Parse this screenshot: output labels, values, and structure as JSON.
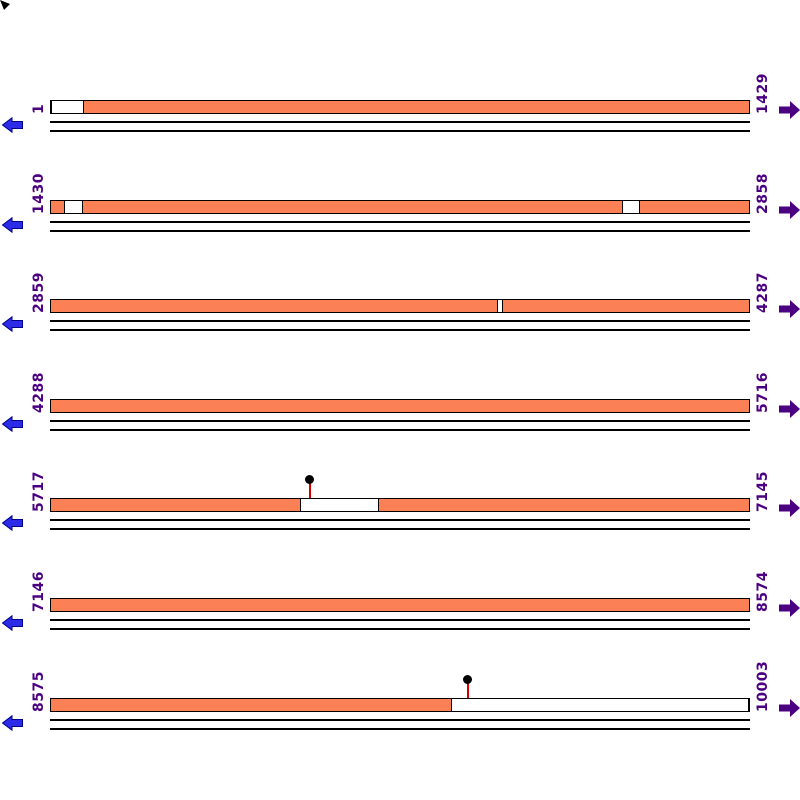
{
  "figure": {
    "type": "linear-sequence-map",
    "rows_count": 7,
    "sequence_start": 1,
    "sequence_end": 10003,
    "bases_per_row": 1429
  },
  "colors": {
    "bar_fill": "#FB8055",
    "bar_border": "#000000",
    "subline": "#000000",
    "left_arrow_fill": "#2B2BE8",
    "left_arrow_edge": "#00008B",
    "right_arrow_fill": "#4B0082",
    "label_color": "#4B0082",
    "marker_stem": "#D40000",
    "marker_head": "#000000",
    "background": "#FFFFFF"
  },
  "icons": {
    "left_arrow": "arrow-left",
    "right_arrow": "arrow-right",
    "marker": "lollipop-feature-marker",
    "corner": "cursor-tip"
  },
  "rows": [
    {
      "start_label": "1",
      "end_label": "1429",
      "segments": [
        {
          "f": 0.0,
          "t": 0.047,
          "filled": false
        },
        {
          "f": 0.047,
          "t": 1.0,
          "filled": true
        }
      ],
      "markers": []
    },
    {
      "start_label": "1430",
      "end_label": "2858",
      "segments": [
        {
          "f": 0.0,
          "t": 0.0186,
          "filled": true
        },
        {
          "f": 0.0186,
          "t": 0.0457,
          "filled": false
        },
        {
          "f": 0.0457,
          "t": 0.8186,
          "filled": true
        },
        {
          "f": 0.8186,
          "t": 0.8443,
          "filled": false
        },
        {
          "f": 0.8443,
          "t": 1.0,
          "filled": true
        }
      ],
      "markers": []
    },
    {
      "start_label": "2859",
      "end_label": "4287",
      "segments": [
        {
          "f": 0.0,
          "t": 0.6386,
          "filled": true
        },
        {
          "f": 0.6386,
          "t": 0.6471,
          "filled": false
        },
        {
          "f": 0.6471,
          "t": 1.0,
          "filled": true
        }
      ],
      "markers": []
    },
    {
      "start_label": "4288",
      "end_label": "5716",
      "segments": [
        {
          "f": 0.0,
          "t": 1.0,
          "filled": true
        }
      ],
      "markers": []
    },
    {
      "start_label": "5717",
      "end_label": "7145",
      "segments": [
        {
          "f": 0.0,
          "t": 0.3571,
          "filled": true
        },
        {
          "f": 0.3571,
          "t": 0.47,
          "filled": false
        },
        {
          "f": 0.47,
          "t": 1.0,
          "filled": true
        }
      ],
      "markers": [
        {
          "x": 0.3714
        }
      ]
    },
    {
      "start_label": "7146",
      "end_label": "8574",
      "segments": [
        {
          "f": 0.0,
          "t": 1.0,
          "filled": true
        }
      ],
      "markers": []
    },
    {
      "start_label": "8575",
      "end_label": "10003",
      "segments": [
        {
          "f": 0.0,
          "t": 0.573,
          "filled": true
        },
        {
          "f": 0.573,
          "t": 1.0,
          "filled": false
        }
      ],
      "markers": [
        {
          "x": 0.5971
        }
      ]
    }
  ]
}
